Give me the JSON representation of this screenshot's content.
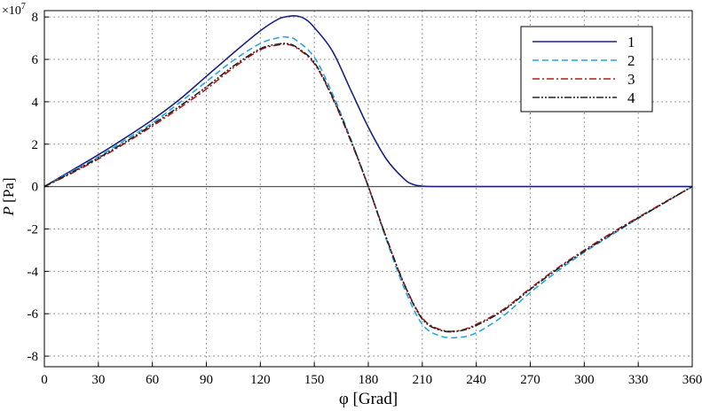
{
  "chart_data": {
    "type": "line",
    "title": "",
    "xlabel": "φ [Grad]",
    "ylabel_italic": "P",
    "ylabel_rest": " [Pa]",
    "y_multiplier": "×10",
    "y_multiplier_exp": "7",
    "xlim": [
      0,
      360
    ],
    "ylim": [
      -8.5,
      8.3
    ],
    "x_ticks": [
      0,
      30,
      60,
      90,
      120,
      150,
      180,
      210,
      240,
      270,
      300,
      330,
      360
    ],
    "y_ticks": [
      -8,
      -6,
      -4,
      -2,
      0,
      2,
      4,
      6,
      8
    ],
    "grid": true,
    "legend_position": "top-right",
    "series": [
      {
        "name": "1",
        "color": "#1a237e",
        "dash": "solid",
        "x": [
          0,
          15,
          30,
          45,
          60,
          75,
          90,
          105,
          120,
          130,
          135,
          140,
          145,
          150,
          160,
          170,
          180,
          190,
          200,
          205,
          210,
          220,
          240,
          270,
          300,
          330,
          360
        ],
        "y": [
          0,
          0.75,
          1.5,
          2.3,
          3.15,
          4.1,
          5.2,
          6.3,
          7.35,
          7.9,
          8.02,
          8.05,
          7.9,
          7.5,
          6.4,
          4.6,
          2.8,
          1.3,
          0.35,
          0.1,
          0.02,
          0,
          0,
          0,
          0,
          0,
          0
        ]
      },
      {
        "name": "2",
        "color": "#29a3e0",
        "dash": "dashed",
        "x": [
          0,
          15,
          30,
          45,
          60,
          75,
          90,
          105,
          120,
          130,
          135,
          140,
          150,
          160,
          170,
          180,
          190,
          200,
          210,
          220,
          230,
          240,
          255,
          270,
          285,
          300,
          315,
          330,
          345,
          360
        ],
        "y": [
          0,
          0.7,
          1.4,
          2.2,
          3.0,
          3.95,
          4.95,
          5.95,
          6.75,
          7.02,
          7.05,
          6.9,
          6.1,
          4.4,
          2.3,
          0,
          -2.5,
          -4.8,
          -6.5,
          -7.05,
          -7.12,
          -6.9,
          -6.1,
          -5.0,
          -4.0,
          -3.1,
          -2.3,
          -1.5,
          -0.75,
          0
        ]
      },
      {
        "name": "3",
        "color": "#b71c1c",
        "dash": "dashdot",
        "x": [
          0,
          15,
          30,
          45,
          60,
          75,
          90,
          105,
          120,
          130,
          135,
          140,
          150,
          160,
          170,
          180,
          190,
          200,
          210,
          220,
          230,
          240,
          255,
          270,
          285,
          300,
          315,
          330,
          345,
          360
        ],
        "y": [
          0,
          0.62,
          1.3,
          2.05,
          2.85,
          3.7,
          4.6,
          5.6,
          6.45,
          6.68,
          6.7,
          6.55,
          5.8,
          4.2,
          2.2,
          0,
          -2.4,
          -4.6,
          -6.2,
          -6.75,
          -6.8,
          -6.5,
          -5.8,
          -4.8,
          -3.85,
          -3.0,
          -2.2,
          -1.45,
          -0.72,
          0
        ]
      },
      {
        "name": "4",
        "color": "#222222",
        "dash": "dashdotdot",
        "x": [
          0,
          15,
          30,
          45,
          60,
          75,
          90,
          105,
          120,
          130,
          135,
          140,
          150,
          160,
          170,
          180,
          190,
          200,
          210,
          220,
          230,
          240,
          255,
          270,
          285,
          300,
          315,
          330,
          345,
          360
        ],
        "y": [
          0,
          0.66,
          1.35,
          2.1,
          2.92,
          3.78,
          4.7,
          5.68,
          6.5,
          6.72,
          6.74,
          6.58,
          5.85,
          4.25,
          2.25,
          0,
          -2.42,
          -4.62,
          -6.25,
          -6.78,
          -6.82,
          -6.55,
          -5.85,
          -4.85,
          -3.9,
          -3.05,
          -2.25,
          -1.48,
          -0.74,
          0
        ]
      }
    ]
  }
}
